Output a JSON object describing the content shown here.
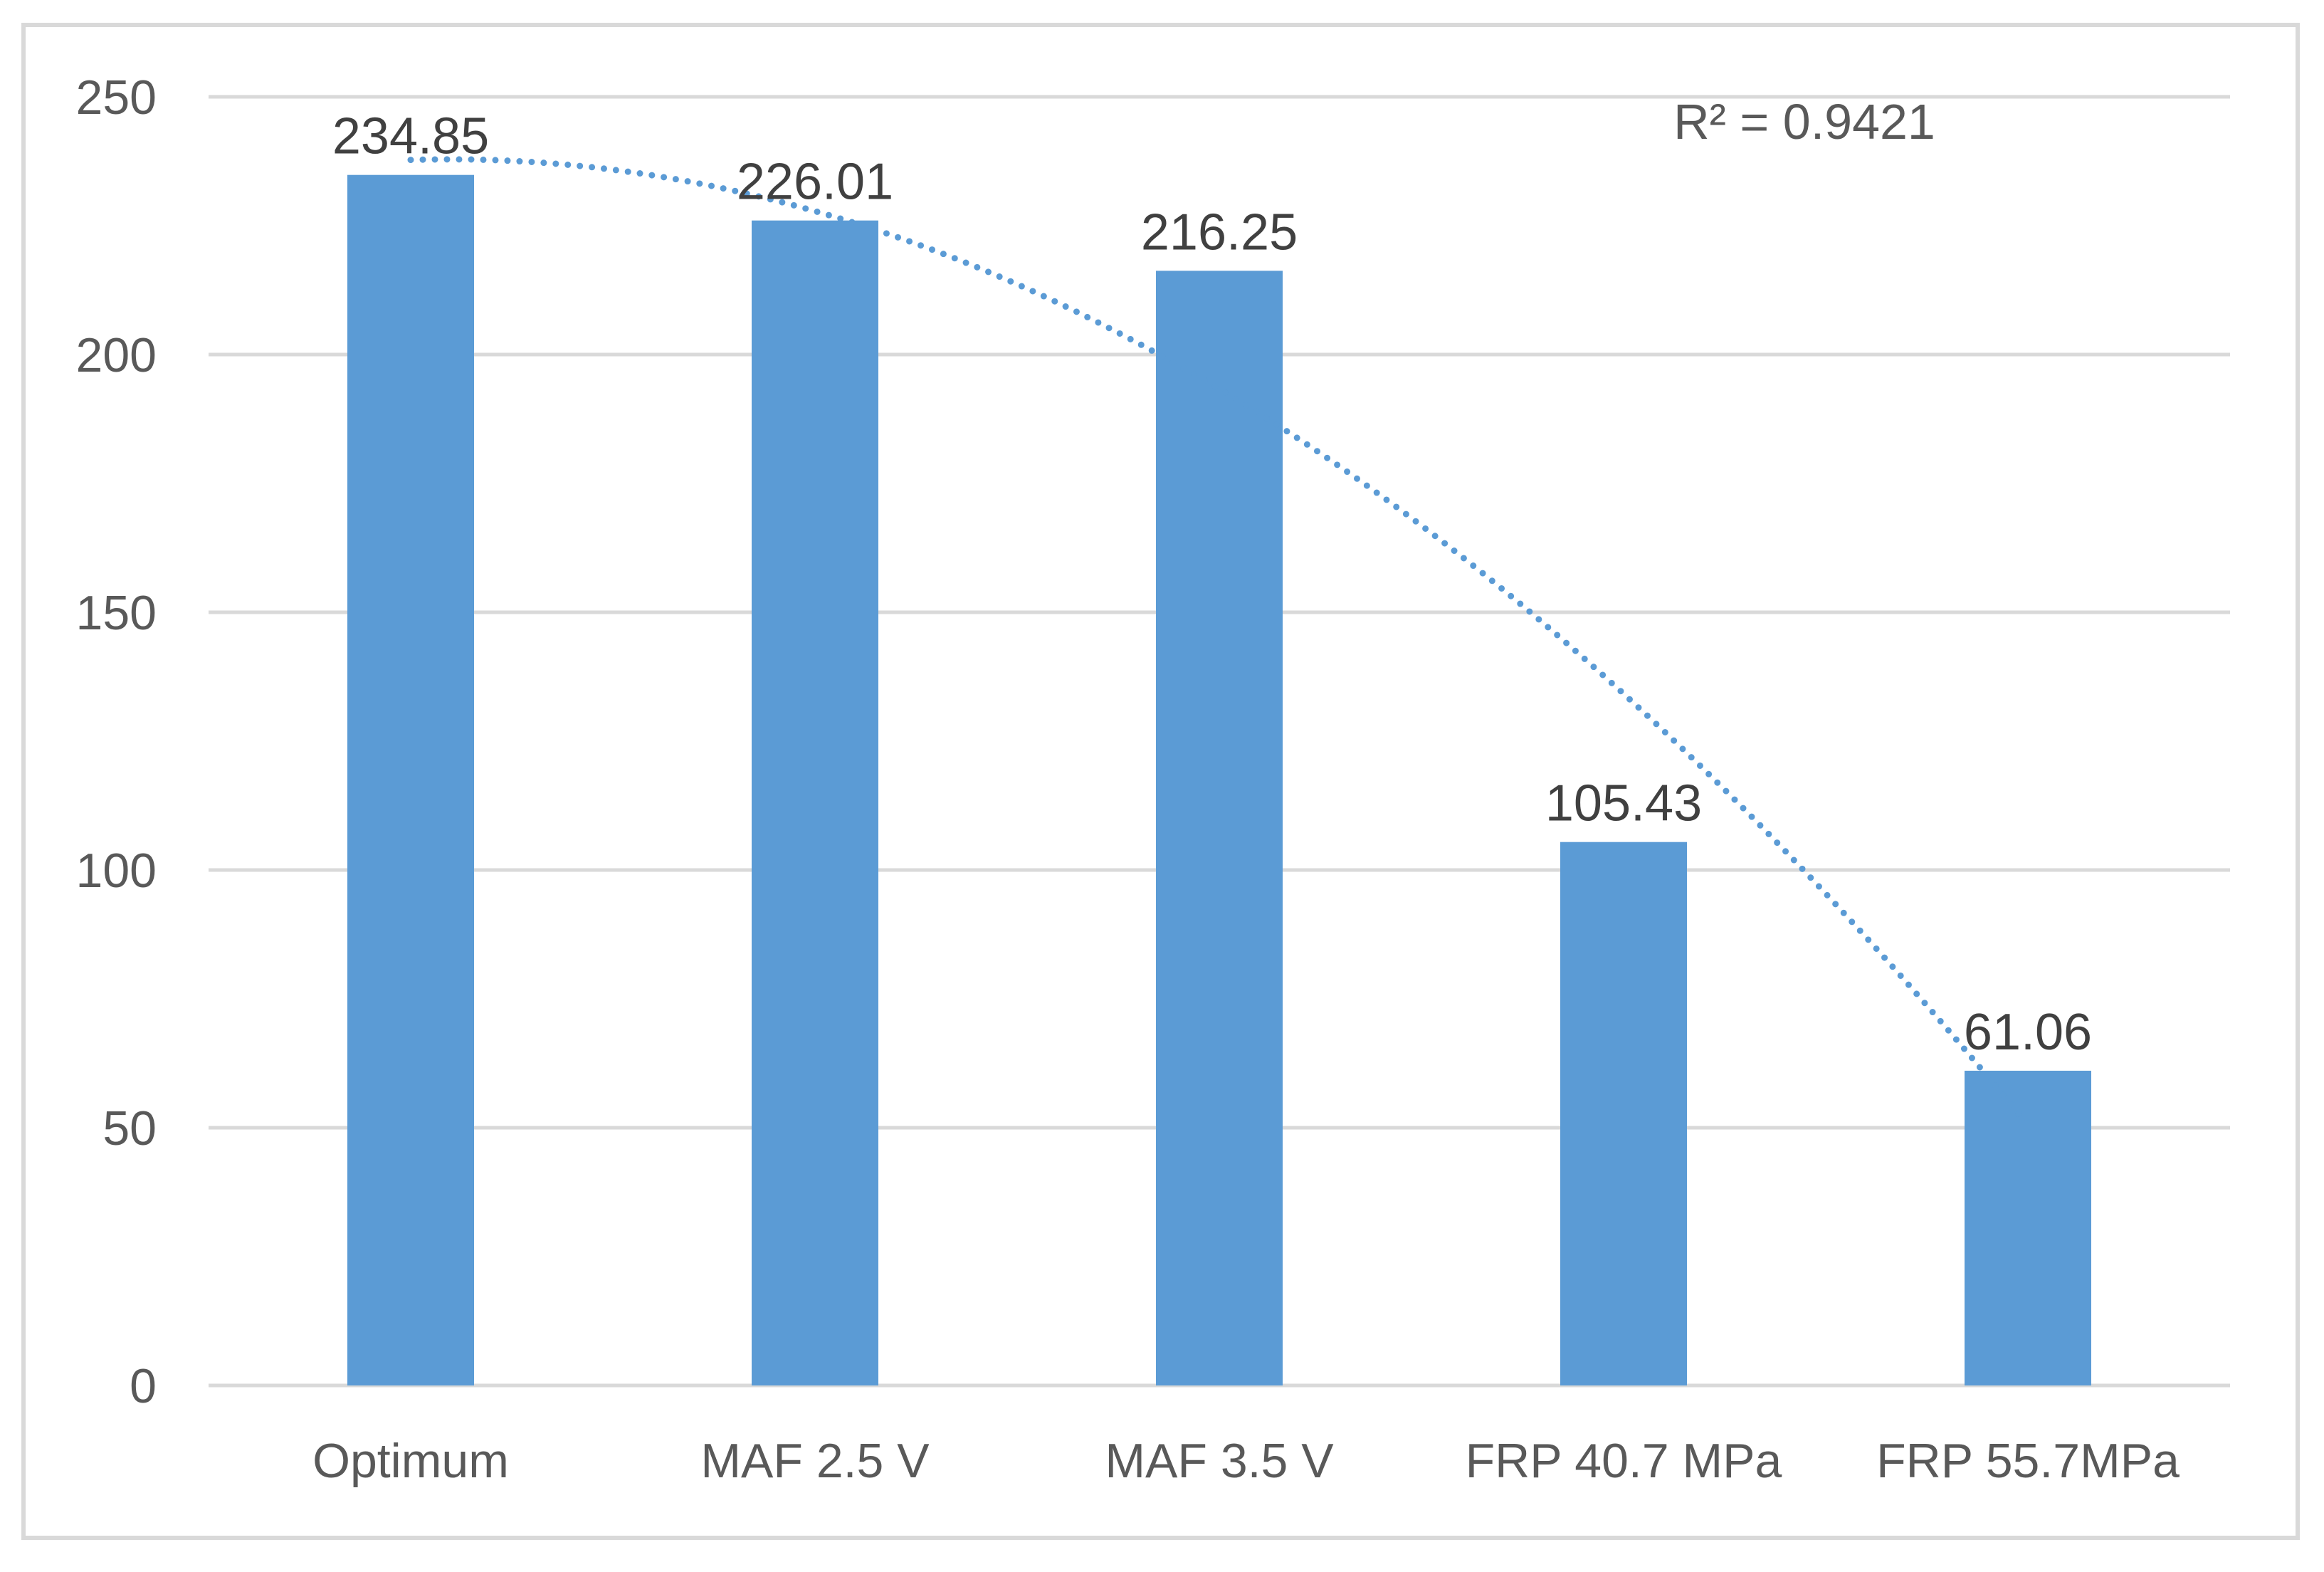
{
  "chart_data": {
    "type": "bar",
    "title": "",
    "xlabel": "",
    "ylabel": "",
    "categories": [
      "Optimum",
      "MAF 2.5 V",
      "MAF 3.5 V",
      "FRP 40.7 MPa",
      "FRP 55.7MPa"
    ],
    "values": [
      234.85,
      226.01,
      216.25,
      105.43,
      61.06
    ],
    "data_labels": [
      "234.85",
      "226.01",
      "216.25",
      "105.43",
      "61.06"
    ],
    "ylim": [
      0,
      250
    ],
    "yticks": [
      "0",
      "50",
      "100",
      "150",
      "200",
      "250"
    ],
    "grid": true,
    "legend": "none",
    "bar_color": "#5b9bd5",
    "gridline_color": "#d9d9d9",
    "trendline": {
      "type": "polynomial",
      "style": "dotted",
      "color": "#5b9bd5",
      "r_squared_label": "R² = 0.9421"
    }
  }
}
